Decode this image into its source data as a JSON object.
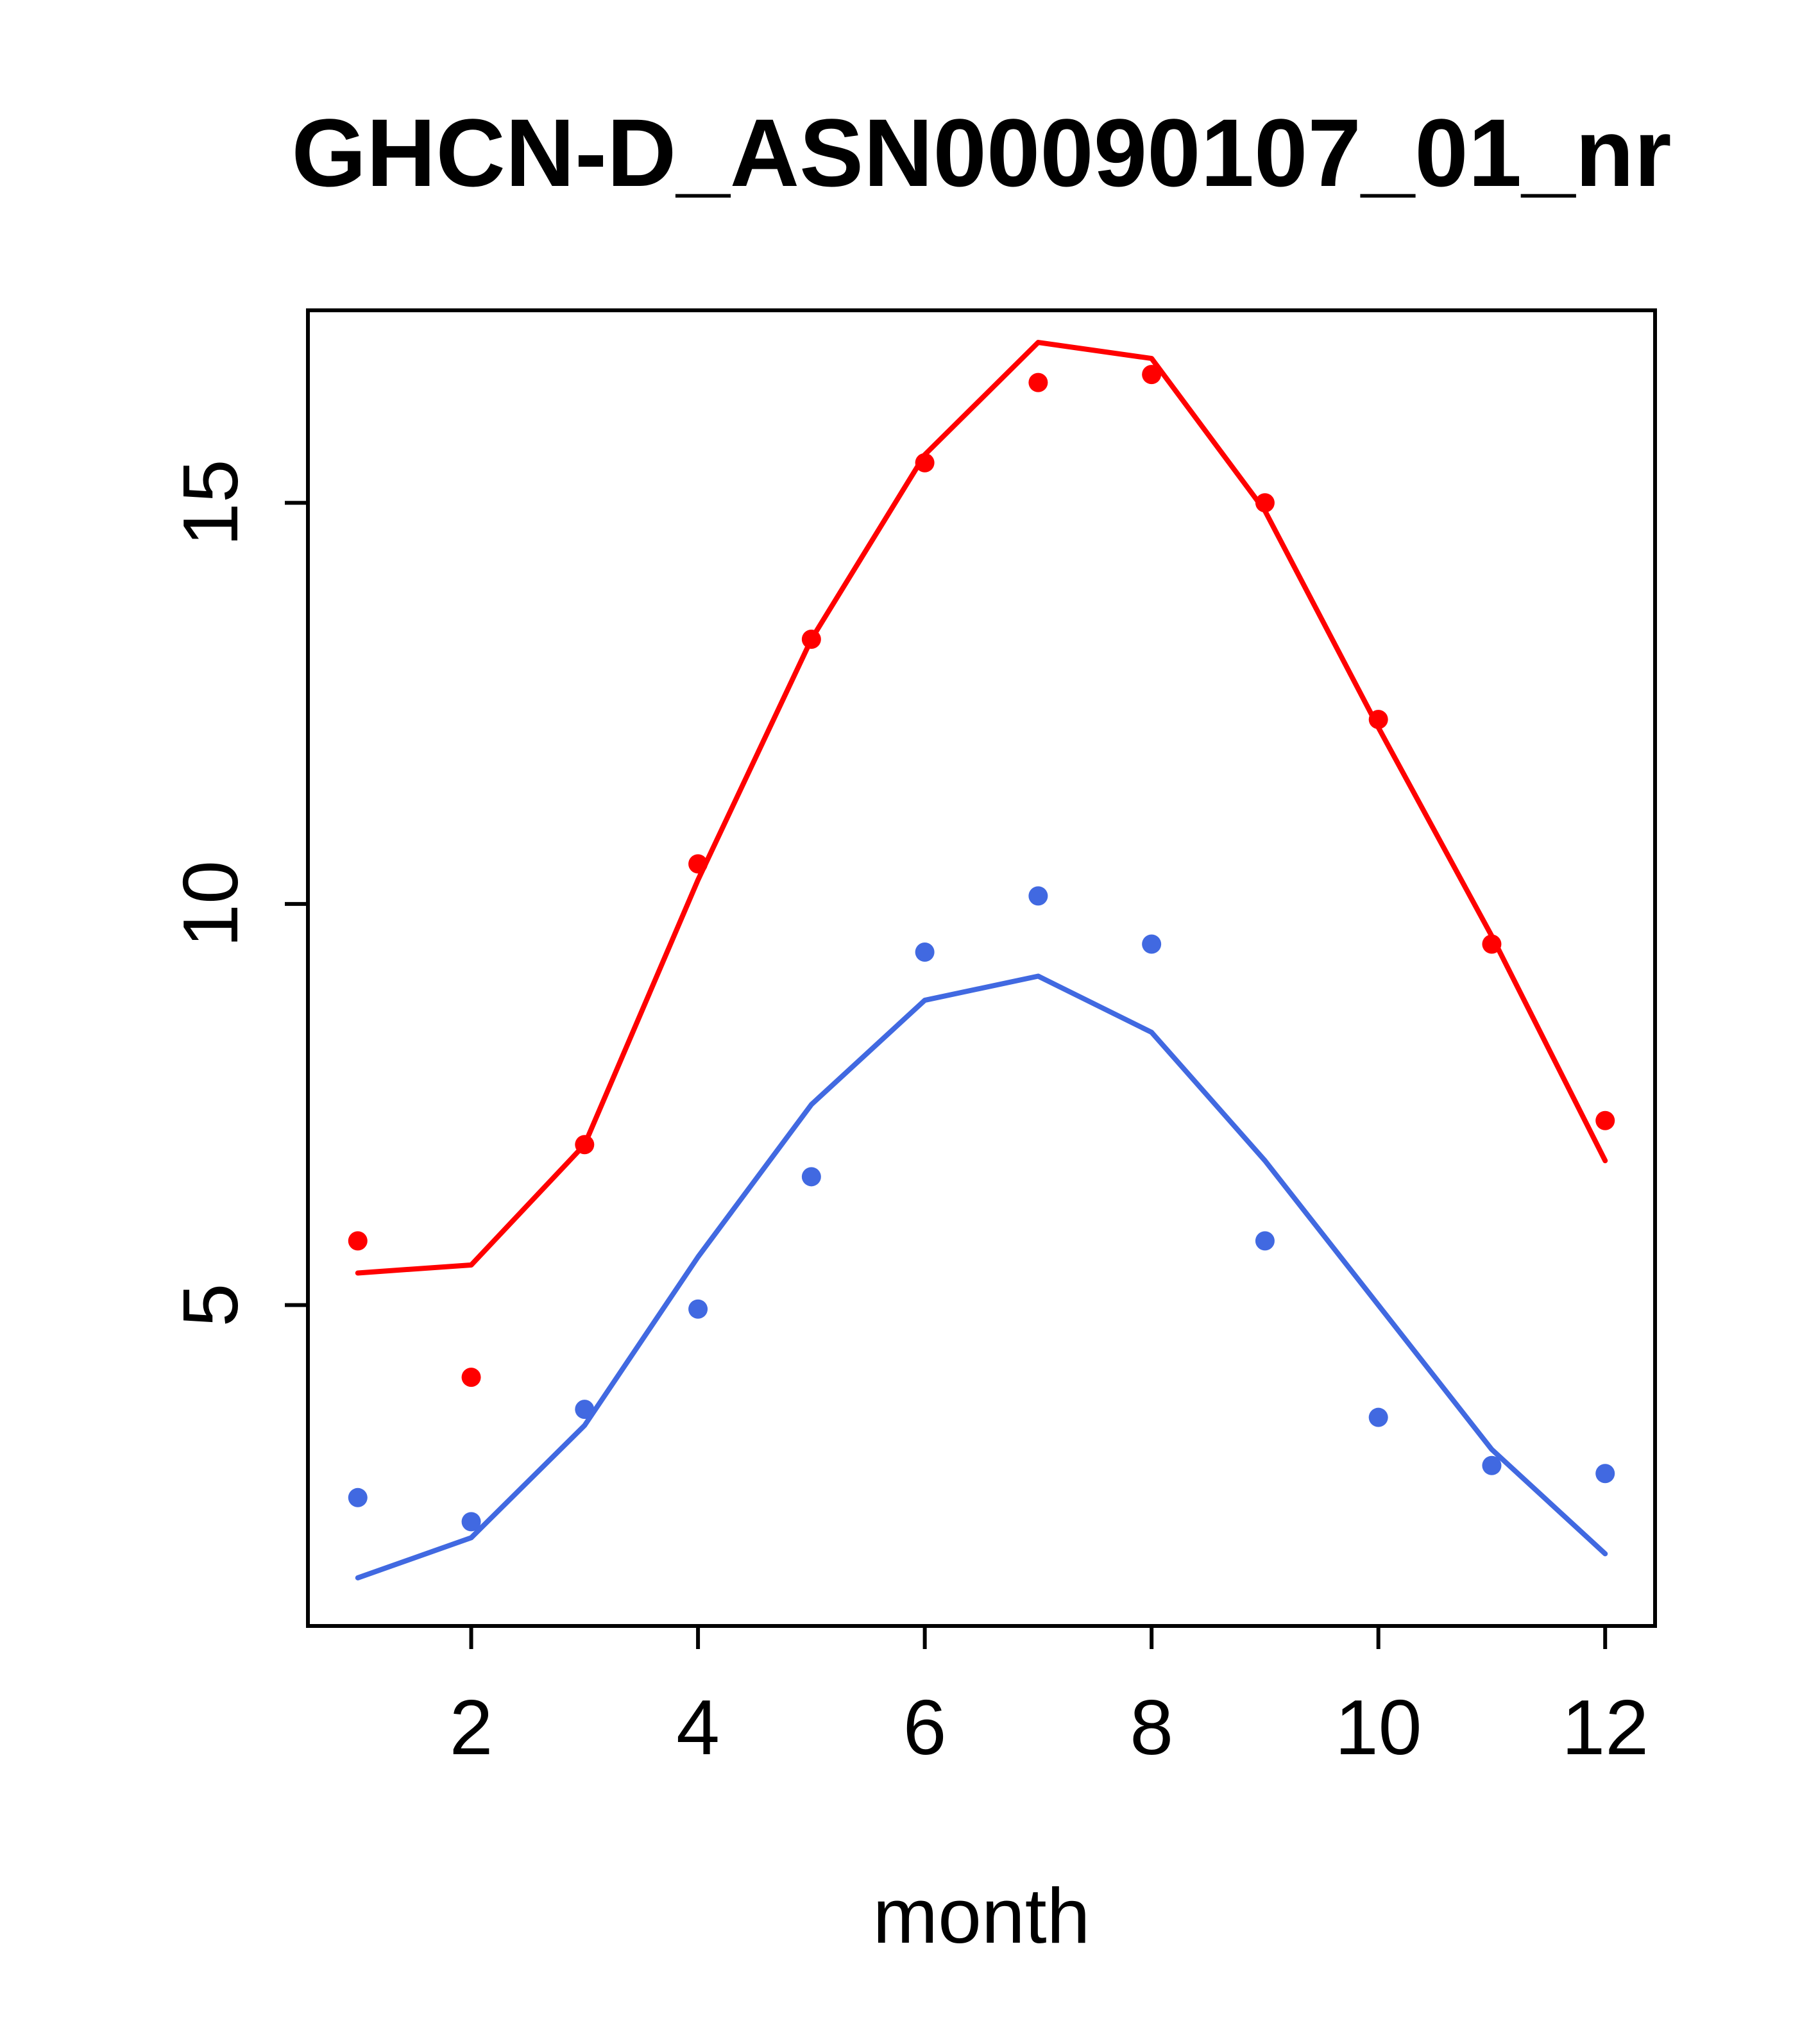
{
  "title": "GHCN-D_ASN00090107_01_nr",
  "xlabel": "month",
  "colors": {
    "red": "#ff0000",
    "blue": "#4169e1",
    "axis": "#000000",
    "background": "#ffffff"
  },
  "chart_data": {
    "type": "line",
    "title": "GHCN-D_ASN00090107_01_nr",
    "xlabel": "month",
    "ylabel": "",
    "x": [
      1,
      2,
      3,
      4,
      5,
      6,
      7,
      8,
      9,
      10,
      11,
      12
    ],
    "xticks": [
      2,
      4,
      6,
      8,
      10,
      12
    ],
    "yticks": [
      5,
      10,
      15
    ],
    "xlim": [
      0.56,
      12.44
    ],
    "ylim": [
      1.0,
      17.4
    ],
    "grid": false,
    "legend": "none",
    "series": [
      {
        "name": "red-monthly-points",
        "type": "scatter",
        "color": "#ff0000",
        "values": [
          5.8,
          4.1,
          7.0,
          10.5,
          13.3,
          15.5,
          16.5,
          16.6,
          15.0,
          12.3,
          9.5,
          7.3
        ]
      },
      {
        "name": "red-fit-line",
        "type": "line",
        "color": "#ff0000",
        "values": [
          5.4,
          5.5,
          7.0,
          10.3,
          13.3,
          15.6,
          17.0,
          16.8,
          14.9,
          12.2,
          9.6,
          6.8
        ]
      },
      {
        "name": "blue-monthly-points",
        "type": "scatter",
        "color": "#4169e1",
        "values": [
          2.6,
          2.3,
          3.7,
          4.95,
          6.6,
          9.4,
          10.1,
          9.5,
          5.8,
          3.6,
          3.0,
          2.9
        ]
      },
      {
        "name": "blue-fit-line",
        "type": "line",
        "color": "#4169e1",
        "values": [
          1.6,
          2.1,
          3.5,
          5.6,
          7.5,
          8.8,
          9.1,
          8.4,
          6.8,
          5.0,
          3.2,
          1.9
        ]
      }
    ]
  }
}
